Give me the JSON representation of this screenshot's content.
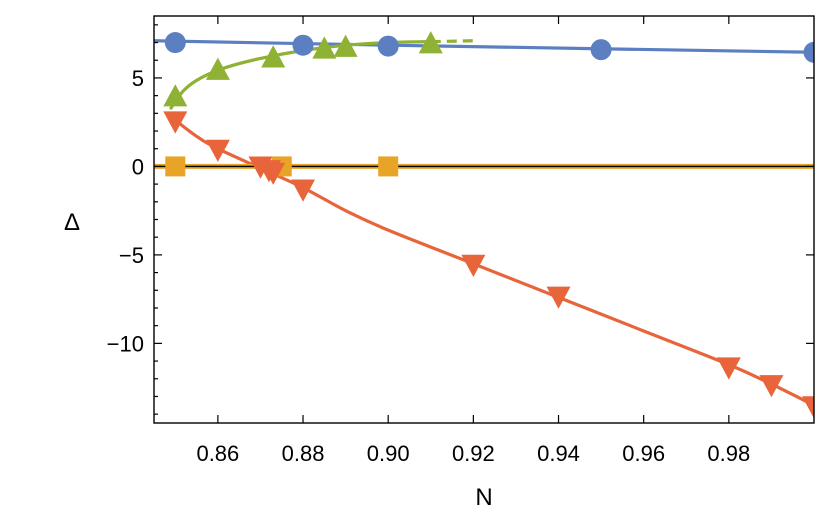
{
  "chart_data": {
    "type": "scatter",
    "title": "",
    "xlabel": "N",
    "ylabel": "Δ",
    "xlim": [
      0.845,
      1.0
    ],
    "ylim": [
      -14.5,
      8.5
    ],
    "grid": false,
    "legend": "none",
    "x_ticks": [
      {
        "value": 0.86,
        "label": "0.86"
      },
      {
        "value": 0.88,
        "label": "0.88"
      },
      {
        "value": 0.9,
        "label": "0.90"
      },
      {
        "value": 0.92,
        "label": "0.92"
      },
      {
        "value": 0.94,
        "label": "0.94"
      },
      {
        "value": 0.96,
        "label": "0.96"
      },
      {
        "value": 0.98,
        "label": "0.98"
      }
    ],
    "y_ticks": [
      {
        "value": 5,
        "label": "5"
      },
      {
        "value": 0,
        "label": "0"
      },
      {
        "value": -5,
        "label": "−5"
      },
      {
        "value": -10,
        "label": "−10"
      }
    ],
    "series": [
      {
        "marker": "circle",
        "color": "#5b7fc0",
        "points": [
          [
            0.85,
            7.0
          ],
          [
            0.88,
            6.85
          ],
          [
            0.9,
            6.8
          ],
          [
            0.95,
            6.6
          ],
          [
            1.0,
            6.45
          ]
        ],
        "curve": [
          [
            0.845,
            7.1
          ],
          [
            0.9,
            6.85
          ],
          [
            1.0,
            6.45
          ]
        ]
      },
      {
        "marker": "triangle-up",
        "color": "#8fb234",
        "points": [
          [
            0.85,
            3.9
          ],
          [
            0.86,
            5.4
          ],
          [
            0.873,
            6.1
          ],
          [
            0.885,
            6.6
          ],
          [
            0.89,
            6.7
          ],
          [
            0.91,
            6.9
          ]
        ],
        "curve": [
          [
            0.849,
            3.3
          ],
          [
            0.852,
            4.3
          ],
          [
            0.856,
            5.0
          ],
          [
            0.862,
            5.6
          ],
          [
            0.87,
            6.1
          ],
          [
            0.88,
            6.55
          ],
          [
            0.89,
            6.85
          ],
          [
            0.9,
            7.0
          ],
          [
            0.91,
            7.05
          ]
        ],
        "curve_dashed": [
          [
            0.91,
            7.05
          ],
          [
            0.92,
            7.1
          ]
        ]
      },
      {
        "marker": "triangle-down",
        "color": "#e8643a",
        "points": [
          [
            0.85,
            2.6
          ],
          [
            0.86,
            1.0
          ],
          [
            0.87,
            0.05
          ],
          [
            0.872,
            -0.15
          ],
          [
            0.873,
            -0.3
          ],
          [
            0.88,
            -1.25
          ],
          [
            0.92,
            -5.5
          ],
          [
            0.94,
            -7.3
          ],
          [
            0.98,
            -11.3
          ],
          [
            0.99,
            -12.3
          ],
          [
            1.0,
            -13.5
          ]
        ],
        "curve": [
          [
            0.849,
            2.8
          ],
          [
            0.855,
            1.7
          ],
          [
            0.86,
            1.0
          ],
          [
            0.87,
            -0.1
          ],
          [
            0.88,
            -1.2
          ],
          [
            0.89,
            -2.5
          ],
          [
            0.9,
            -3.6
          ],
          [
            0.92,
            -5.5
          ],
          [
            0.94,
            -7.4
          ],
          [
            0.96,
            -9.3
          ],
          [
            0.98,
            -11.2
          ],
          [
            0.99,
            -12.3
          ],
          [
            1.0,
            -13.5
          ]
        ]
      },
      {
        "marker": "square",
        "color": "#e8a427",
        "points": [
          [
            0.85,
            0.0
          ],
          [
            0.875,
            0.0
          ],
          [
            0.9,
            0.0
          ]
        ],
        "curve": [
          [
            0.845,
            0.0
          ],
          [
            1.0,
            0.0
          ]
        ]
      }
    ],
    "reference_line": {
      "y": 0,
      "color": "#000000"
    }
  }
}
